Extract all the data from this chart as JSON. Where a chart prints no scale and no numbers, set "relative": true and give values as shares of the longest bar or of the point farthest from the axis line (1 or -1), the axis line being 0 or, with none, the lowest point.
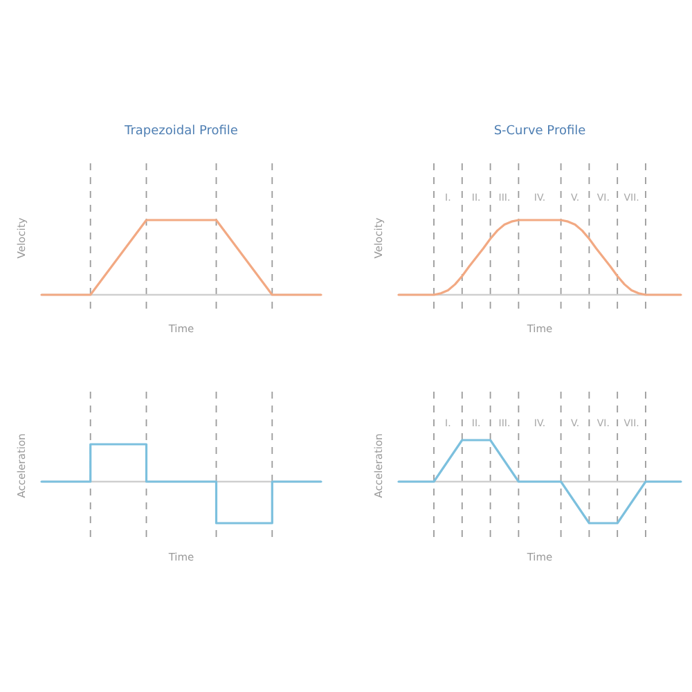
{
  "chart_data": [
    {
      "type": "line",
      "title": "Trapezoidal Profile",
      "xlabel": "Time",
      "ylabel": "Velocity",
      "relative": true,
      "grid": "x",
      "categories": [
        null,
        null,
        null,
        null,
        null,
        null,
        null,
        null,
        null,
        null,
        null,
        null,
        null,
        null,
        null,
        null,
        null,
        null,
        null,
        null,
        null,
        null,
        null,
        null,
        null,
        null,
        null,
        null,
        null,
        null,
        null,
        null,
        null,
        null,
        null,
        null,
        null,
        null,
        null,
        null,
        null
      ],
      "series": [
        {
          "color": "#f2a983",
          "values": [
            0,
            0,
            0,
            0,
            0,
            0,
            0,
            0,
            0.125,
            0.25,
            0.375,
            0.5,
            0.625,
            0.75,
            0.875,
            1,
            1,
            1,
            1,
            1,
            1,
            1,
            1,
            1,
            1,
            1,
            0.875,
            0.75,
            0.625,
            0.5,
            0.375,
            0.25,
            0.125,
            0,
            0,
            0,
            0,
            0,
            0,
            0,
            0
          ]
        }
      ]
    },
    {
      "type": "line",
      "title": "S-Curve Profile",
      "xlabel": "Time",
      "ylabel": "Velocity",
      "relative": true,
      "grid": "x",
      "categories": [
        null,
        null,
        null,
        null,
        null,
        null,
        null,
        null,
        null,
        null,
        null,
        null,
        null,
        null,
        null,
        null,
        null,
        null,
        null,
        null,
        null,
        null,
        null,
        null,
        null,
        null,
        null,
        null,
        null,
        null,
        null,
        null,
        null,
        null,
        null,
        null,
        null,
        null,
        null,
        null,
        null
      ],
      "annotations": [
        "I.",
        "II.",
        "III.",
        "IV.",
        "V.",
        "VI.",
        "VII."
      ],
      "series": [
        {
          "color": "#f2a983",
          "values": [
            0,
            0,
            0,
            0,
            0,
            0,
            0.02,
            0.06,
            0.14,
            0.25,
            0.38,
            0.5,
            0.62,
            0.75,
            0.86,
            0.94,
            0.98,
            1,
            1,
            1,
            1,
            1,
            1,
            1,
            0.98,
            0.94,
            0.86,
            0.75,
            0.62,
            0.5,
            0.38,
            0.25,
            0.14,
            0.06,
            0.02,
            0,
            0,
            0,
            0,
            0,
            0
          ]
        }
      ]
    },
    {
      "type": "step",
      "xlabel": "Time",
      "ylabel": "Acceleration",
      "relative": true,
      "grid": "x",
      "categories": [
        null,
        null,
        null,
        null,
        null,
        null,
        null,
        null,
        null,
        null,
        null,
        null,
        null,
        null,
        null,
        null,
        null,
        null,
        null,
        null,
        null,
        null,
        null,
        null,
        null,
        null,
        null,
        null,
        null,
        null,
        null,
        null,
        null,
        null,
        null,
        null,
        null,
        null,
        null,
        null,
        null
      ],
      "series": [
        {
          "color": "#7cc0de",
          "values": [
            0,
            0,
            0,
            0,
            0,
            0,
            0,
            0.9,
            0.9,
            0.9,
            0.9,
            0.9,
            0.9,
            0.9,
            0.9,
            0,
            0,
            0,
            0,
            0,
            0,
            0,
            0,
            0,
            0,
            -1,
            -1,
            -1,
            -1,
            -1,
            -1,
            -1,
            -1,
            0,
            0,
            0,
            0,
            0,
            0,
            0,
            0
          ]
        }
      ]
    },
    {
      "type": "line",
      "xlabel": "Time",
      "ylabel": "Acceleration",
      "relative": true,
      "grid": "x",
      "categories": [
        null,
        null,
        null,
        null,
        null,
        null,
        null,
        null,
        null,
        null,
        null,
        null,
        null,
        null,
        null,
        null,
        null,
        null,
        null,
        null,
        null,
        null,
        null,
        null,
        null,
        null,
        null,
        null,
        null,
        null,
        null,
        null,
        null,
        null,
        null,
        null,
        null,
        null,
        null,
        null,
        null
      ],
      "annotations": [
        "I.",
        "II.",
        "III.",
        "IV.",
        "V.",
        "VI.",
        "VII."
      ],
      "series": [
        {
          "color": "#7cc0de",
          "values": [
            0,
            0,
            0,
            0,
            0,
            0,
            0.25,
            0.5,
            0.75,
            1,
            1,
            1,
            1,
            1,
            0.75,
            0.5,
            0.25,
            0,
            0,
            0,
            0,
            0,
            0,
            0,
            -0.25,
            -0.5,
            -0.75,
            -1,
            -1,
            -1,
            -1,
            -1,
            -0.75,
            -0.5,
            -0.25,
            0,
            0,
            0,
            0,
            0,
            0
          ]
        }
      ]
    }
  ]
}
